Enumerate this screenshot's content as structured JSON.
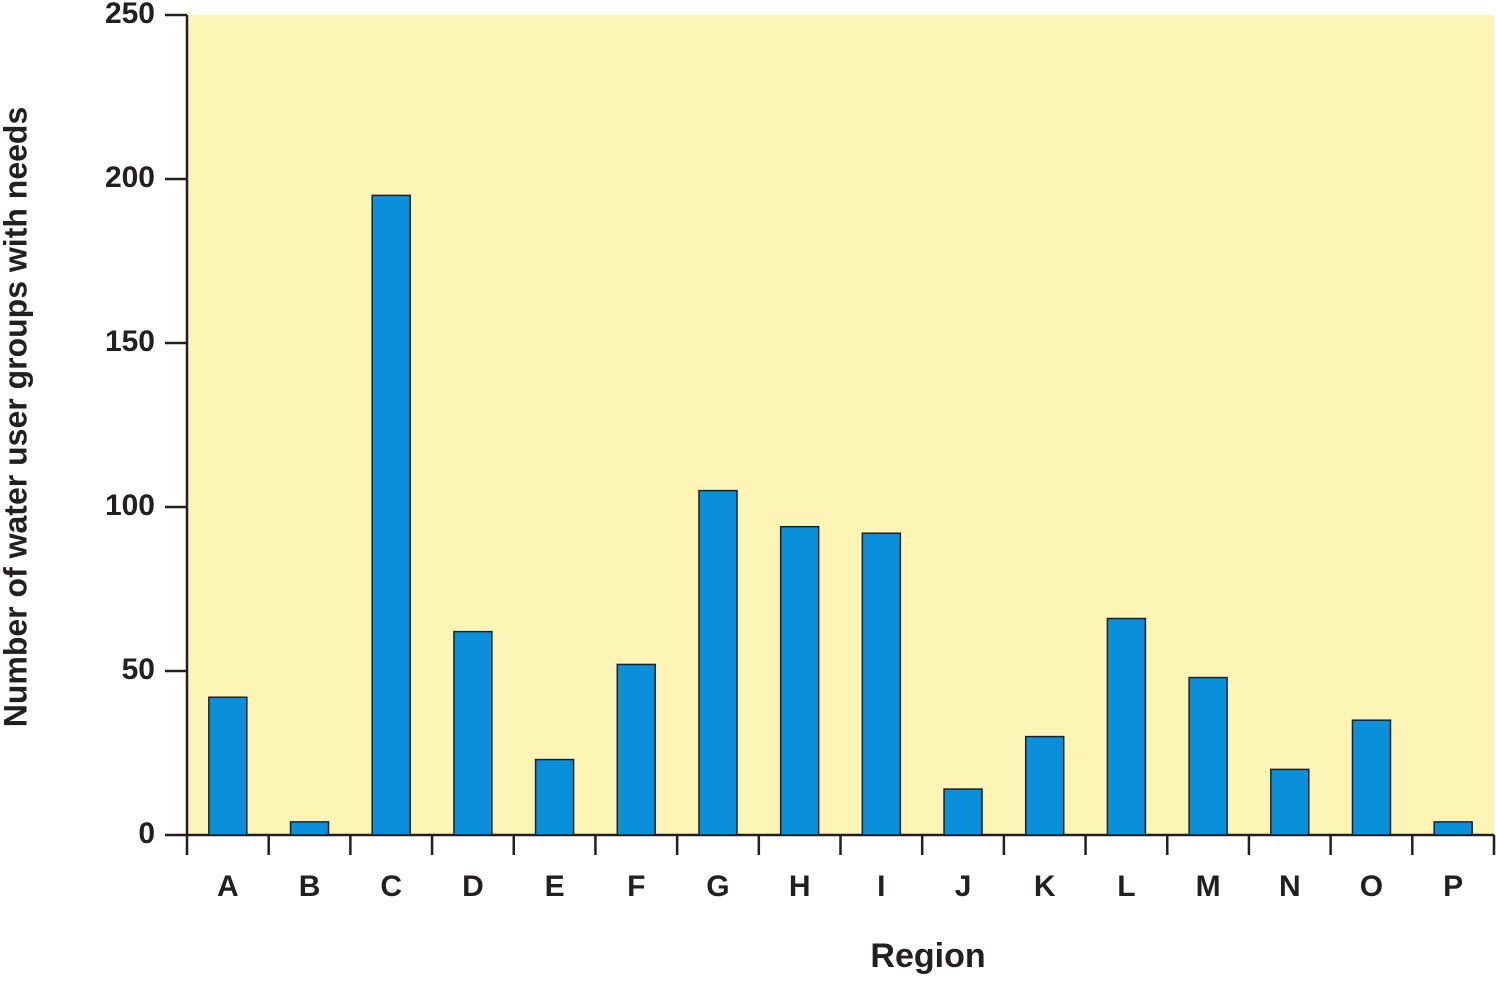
{
  "chart_data": {
    "type": "bar",
    "x_label": "Region",
    "y_label": "Number of water user groups with needs",
    "categories": [
      "A",
      "B",
      "C",
      "D",
      "E",
      "F",
      "G",
      "H",
      "I",
      "J",
      "K",
      "L",
      "M",
      "N",
      "O",
      "P"
    ],
    "values": [
      42,
      4,
      195,
      62,
      23,
      52,
      105,
      94,
      92,
      14,
      30,
      66,
      48,
      20,
      35,
      4
    ],
    "color": "#0a8fdb",
    "background": "#fcf5b5",
    "ylim": [
      0,
      250
    ],
    "yticks": [
      0,
      50,
      100,
      150,
      200,
      250
    ]
  }
}
